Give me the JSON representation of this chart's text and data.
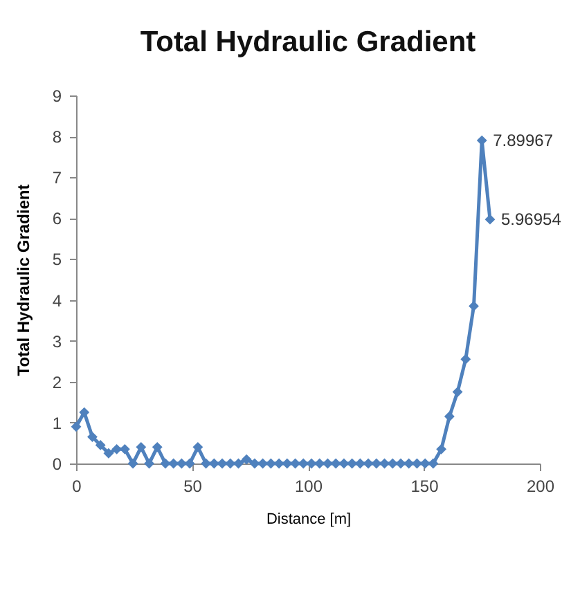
{
  "chart_data": {
    "type": "line",
    "title": "Total Hydraulic Gradient",
    "xlabel": "Distance [m]",
    "ylabel": "Total Hydraulic Gradient",
    "x": [
      0,
      3.5,
      7,
      10.5,
      14,
      17.5,
      21,
      24.5,
      28,
      31.5,
      35,
      38.5,
      42,
      45.5,
      49,
      52.5,
      56,
      59.5,
      63,
      66.5,
      70,
      73.5,
      77,
      80.5,
      84,
      87.5,
      91,
      94.5,
      98,
      101.5,
      105,
      108.5,
      112,
      115.5,
      119,
      122.5,
      126,
      129.5,
      133,
      136.5,
      140,
      143.5,
      147,
      150.5,
      154,
      157.5,
      161,
      164.5,
      168,
      171.5,
      175,
      178.5
    ],
    "series": [
      {
        "color": "#4f81bd",
        "values": [
          0.9,
          1.25,
          0.65,
          0.45,
          0.25,
          0.35,
          0.35,
          0,
          0.4,
          0,
          0.4,
          0,
          0,
          0,
          0,
          0.4,
          0,
          0,
          0,
          0,
          0,
          0.1,
          0,
          0,
          0,
          0,
          0,
          0,
          0,
          0,
          0,
          0,
          0,
          0,
          0,
          0,
          0,
          0,
          0,
          0,
          0,
          0,
          0,
          0,
          0,
          0.35,
          1.15,
          1.75,
          2.55,
          3.85,
          7.89967,
          5.96954
        ],
        "value_labels": [
          null,
          null,
          null,
          null,
          null,
          null,
          null,
          null,
          null,
          null,
          null,
          null,
          null,
          null,
          null,
          null,
          null,
          null,
          null,
          null,
          null,
          null,
          null,
          null,
          null,
          null,
          null,
          null,
          null,
          null,
          null,
          null,
          null,
          null,
          null,
          null,
          null,
          null,
          null,
          null,
          null,
          null,
          null,
          null,
          null,
          null,
          null,
          null,
          null,
          null,
          "7.89967",
          "5.96954"
        ]
      }
    ],
    "xlim": [
      0,
      200
    ],
    "xticks": [
      0,
      50,
      100,
      150,
      200
    ],
    "ylim": [
      0,
      9
    ],
    "yticks": [
      0,
      1,
      2,
      3,
      4,
      5,
      6,
      7,
      8,
      9
    ],
    "grid": false,
    "marker": "diamond",
    "line_style": "solid"
  }
}
